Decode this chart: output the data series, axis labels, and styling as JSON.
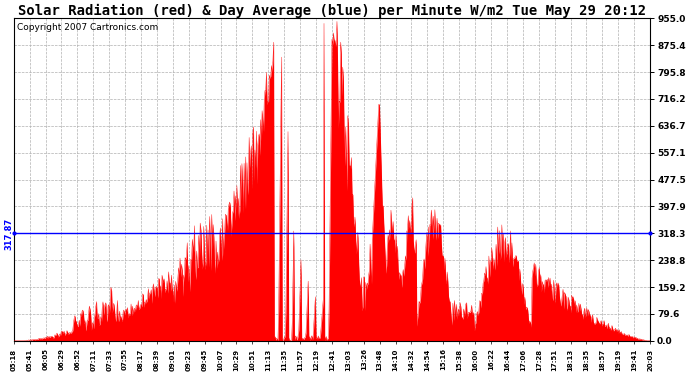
{
  "title": "Solar Radiation (red) & Day Average (blue) per Minute W/m2 Tue May 29 20:12",
  "copyright": "Copyright 2007 Cartronics.com",
  "avg_line": 317.87,
  "avg_label": "317.87",
  "ymax": 955.0,
  "ymin": 0.0,
  "yticks": [
    0.0,
    79.6,
    159.2,
    238.8,
    318.3,
    397.9,
    477.5,
    557.1,
    636.7,
    716.2,
    795.8,
    875.4,
    955.0
  ],
  "ytick_labels": [
    "0.0",
    "79.6",
    "159.2",
    "238.8",
    "318.3",
    "397.9",
    "477.5",
    "557.1",
    "636.7",
    "716.2",
    "795.8",
    "875.4",
    "955.0"
  ],
  "bg_color": "#ffffff",
  "fill_color": "#ff0000",
  "line_color": "#0000ff",
  "grid_color": "#b0b0b0",
  "title_fontsize": 10,
  "copyright_fontsize": 6.5,
  "xtick_labels": [
    "05:18",
    "05:41",
    "06:05",
    "06:29",
    "06:52",
    "07:11",
    "07:33",
    "07:55",
    "08:17",
    "08:39",
    "09:01",
    "09:23",
    "09:45",
    "10:07",
    "10:29",
    "10:51",
    "11:13",
    "11:35",
    "11:57",
    "12:19",
    "12:41",
    "13:03",
    "13:26",
    "13:48",
    "14:10",
    "14:32",
    "14:54",
    "15:16",
    "15:38",
    "16:00",
    "16:22",
    "16:44",
    "17:06",
    "17:28",
    "17:51",
    "18:13",
    "18:35",
    "18:57",
    "19:19",
    "19:41",
    "20:03"
  ]
}
